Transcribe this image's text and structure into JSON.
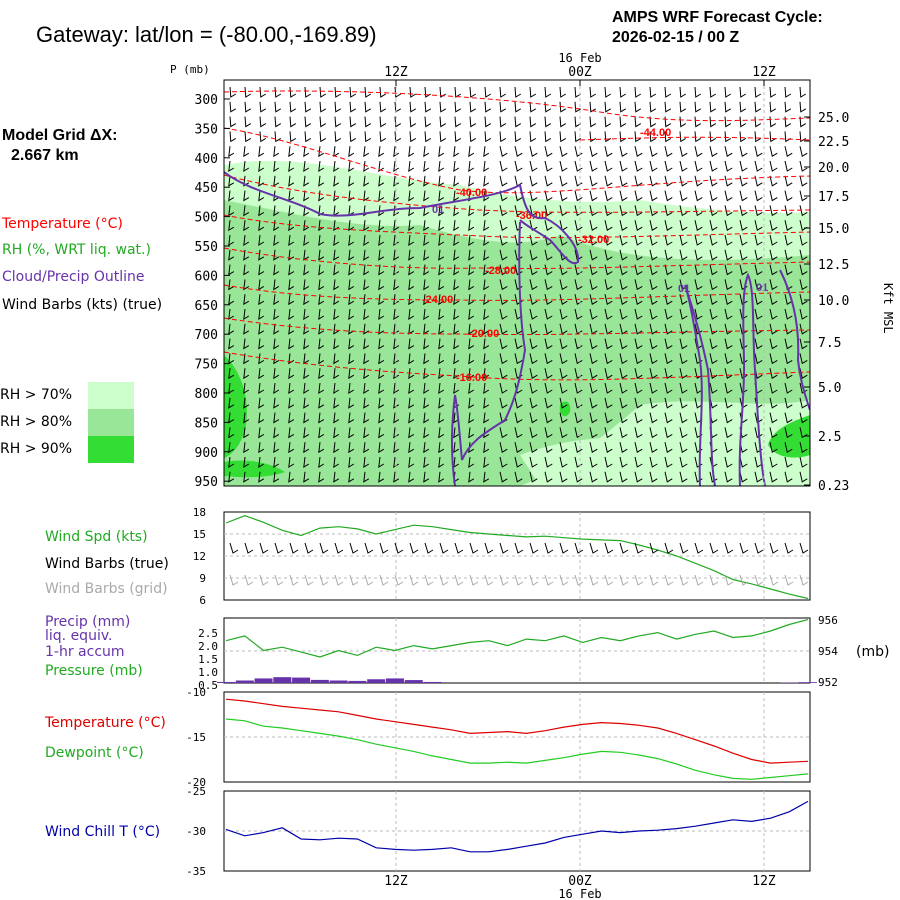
{
  "header": {
    "title": "Gateway:  lat/lon = (-80.00,-169.89)",
    "cycle_line1": "AMPS WRF Forecast Cycle:",
    "cycle_line2": "2026-02-15 / 00  Z"
  },
  "model_grid": {
    "label": "Model Grid ΔX:",
    "value": "2.667 km"
  },
  "time_axis": {
    "ticks": [
      "12Z",
      "00Z",
      "12Z"
    ],
    "date_label": "16 Feb"
  },
  "colors": {
    "temperature": "#ff0000",
    "rh": "#22aa22",
    "cloud": "#6633aa",
    "wind": "#000000",
    "wind_grid": "#aaaaaa",
    "rh70": "#ccffcc",
    "rh80": "#99e699",
    "rh90": "#33dd33",
    "windchill": "#0000aa"
  },
  "legend": {
    "temperature": "Temperature (°C)",
    "rh": "RH (%, WRT liq. wat.)",
    "cloud": "Cloud/Precip Outline",
    "wind": "Wind Barbs (kts) (true)",
    "rh70": "RH > 70%",
    "rh80": "RH > 80%",
    "rh90": "RH > 90%"
  },
  "chart_data": [
    {
      "type": "heatmap",
      "ylabel": "P (mb)",
      "y2label": "Kft MSL",
      "pressure_levels": [
        300,
        350,
        400,
        450,
        500,
        550,
        600,
        650,
        700,
        750,
        800,
        850,
        900,
        950
      ],
      "height_ticks": [
        "25.0",
        "22.5",
        "20.0",
        "17.5",
        "15.0",
        "12.5",
        "10.0",
        "7.5",
        "5.0",
        "2.5",
        "0.23"
      ],
      "temperature_contours": [
        {
          "label": "-44.00",
          "level": -44
        },
        {
          "label": "-40.00",
          "level": -40
        },
        {
          "label": "-36.00",
          "level": -36
        },
        {
          "label": "-32.00",
          "level": -32
        },
        {
          "label": "-28.00",
          "level": -28
        },
        {
          "label": "-24.00",
          "level": -24
        },
        {
          "label": "-20.00",
          "level": -20
        },
        {
          "label": "-16.00",
          "level": -16
        }
      ],
      "cloud_outline_label": "01"
    },
    {
      "type": "line",
      "series": [
        {
          "name": "Wind Spd (kts)",
          "values": [
            16.5,
            17.5,
            16.6,
            15.5,
            14.8,
            15.8,
            16.0,
            15.7,
            15.0,
            15.6,
            16.2,
            16.0,
            15.6,
            15.2,
            15.0,
            14.8,
            14.6,
            14.7,
            14.5,
            14.3,
            14.2,
            14.1,
            13.5,
            12.8,
            12.0,
            11.0,
            10.0,
            8.8,
            8.2,
            7.5,
            6.8,
            6.2
          ]
        }
      ],
      "yticks": [
        "18",
        "15",
        "12",
        "9",
        "6"
      ],
      "ylim": [
        6,
        18
      ],
      "legend": [
        "Wind Spd (kts)",
        "Wind Barbs (true)",
        "Wind Barbs (grid)"
      ]
    },
    {
      "type": "line",
      "series": [
        {
          "name": "Pressure (mb)",
          "values": [
            954.6,
            954.9,
            954.0,
            954.2,
            953.9,
            953.6,
            954.0,
            953.7,
            954.2,
            954.0,
            954.3,
            954.1,
            954.3,
            954.5,
            954.6,
            954.3,
            954.7,
            954.6,
            954.9,
            954.5,
            954.8,
            954.6,
            954.9,
            955.1,
            954.7,
            955.0,
            955.2,
            954.8,
            954.9,
            955.2,
            955.6,
            955.9
          ]
        },
        {
          "name": "Precip (mm) liq. equiv. 1-hr accum",
          "values": [
            0.05,
            0.12,
            0.22,
            0.28,
            0.26,
            0.15,
            0.12,
            0.1,
            0.18,
            0.22,
            0.14,
            0.05,
            0,
            0,
            0,
            0,
            0,
            0,
            0,
            0,
            0,
            0,
            0,
            0,
            0,
            0,
            0,
            0,
            0,
            0,
            0.02,
            0.04
          ]
        }
      ],
      "yticks_left": [
        "2.5",
        "2.0",
        "1.5",
        "1.0",
        "0.5"
      ],
      "yticks_right": [
        "956",
        "954",
        "952"
      ],
      "ylim": [
        952,
        956
      ],
      "legend": [
        "Precip (mm)",
        "liq. equiv.",
        "1-hr accum",
        "Pressure (mb)"
      ],
      "right_unit": "(mb)"
    },
    {
      "type": "line",
      "series": [
        {
          "name": "Temperature (°C)",
          "values": [
            -10.8,
            -11.0,
            -11.3,
            -11.6,
            -11.8,
            -12.0,
            -12.2,
            -12.6,
            -13.0,
            -13.3,
            -13.6,
            -13.9,
            -14.2,
            -14.6,
            -14.5,
            -14.4,
            -14.6,
            -14.3,
            -13.9,
            -13.6,
            -13.4,
            -13.5,
            -13.7,
            -14.0,
            -14.6,
            -15.3,
            -16.0,
            -16.8,
            -17.5,
            -17.9,
            -17.8,
            -17.7
          ]
        },
        {
          "name": "Dewpoint (°C)",
          "values": [
            -13.0,
            -13.2,
            -13.8,
            -14.0,
            -14.3,
            -14.6,
            -14.9,
            -15.3,
            -15.8,
            -16.2,
            -16.6,
            -17.1,
            -17.5,
            -17.9,
            -17.9,
            -17.8,
            -17.9,
            -17.6,
            -17.3,
            -16.9,
            -16.6,
            -16.7,
            -17.0,
            -17.4,
            -18.0,
            -18.7,
            -19.2,
            -19.6,
            -19.7,
            -19.5,
            -19.3,
            -19.1
          ]
        }
      ],
      "yticks": [
        "-10",
        "-15",
        "-20"
      ],
      "ylim": [
        -20,
        -10
      ],
      "legend": [
        "Temperature (°C)",
        "Dewpoint (°C)"
      ]
    },
    {
      "type": "line",
      "series": [
        {
          "name": "Wind Chill T (°C)",
          "values": [
            -29.8,
            -30.6,
            -30.2,
            -29.6,
            -31.0,
            -31.1,
            -30.9,
            -31.0,
            -32.1,
            -32.3,
            -32.4,
            -32.3,
            -32.1,
            -32.6,
            -32.6,
            -32.3,
            -31.9,
            -31.5,
            -30.8,
            -30.4,
            -30.0,
            -30.2,
            -30.0,
            -29.9,
            -29.7,
            -29.4,
            -29.0,
            -28.6,
            -28.8,
            -28.4,
            -27.6,
            -26.3
          ]
        }
      ],
      "yticks": [
        "-25",
        "-30",
        "-35"
      ],
      "ylim": [
        -35,
        -25
      ],
      "legend": [
        "Wind Chill T (°C)"
      ]
    }
  ]
}
